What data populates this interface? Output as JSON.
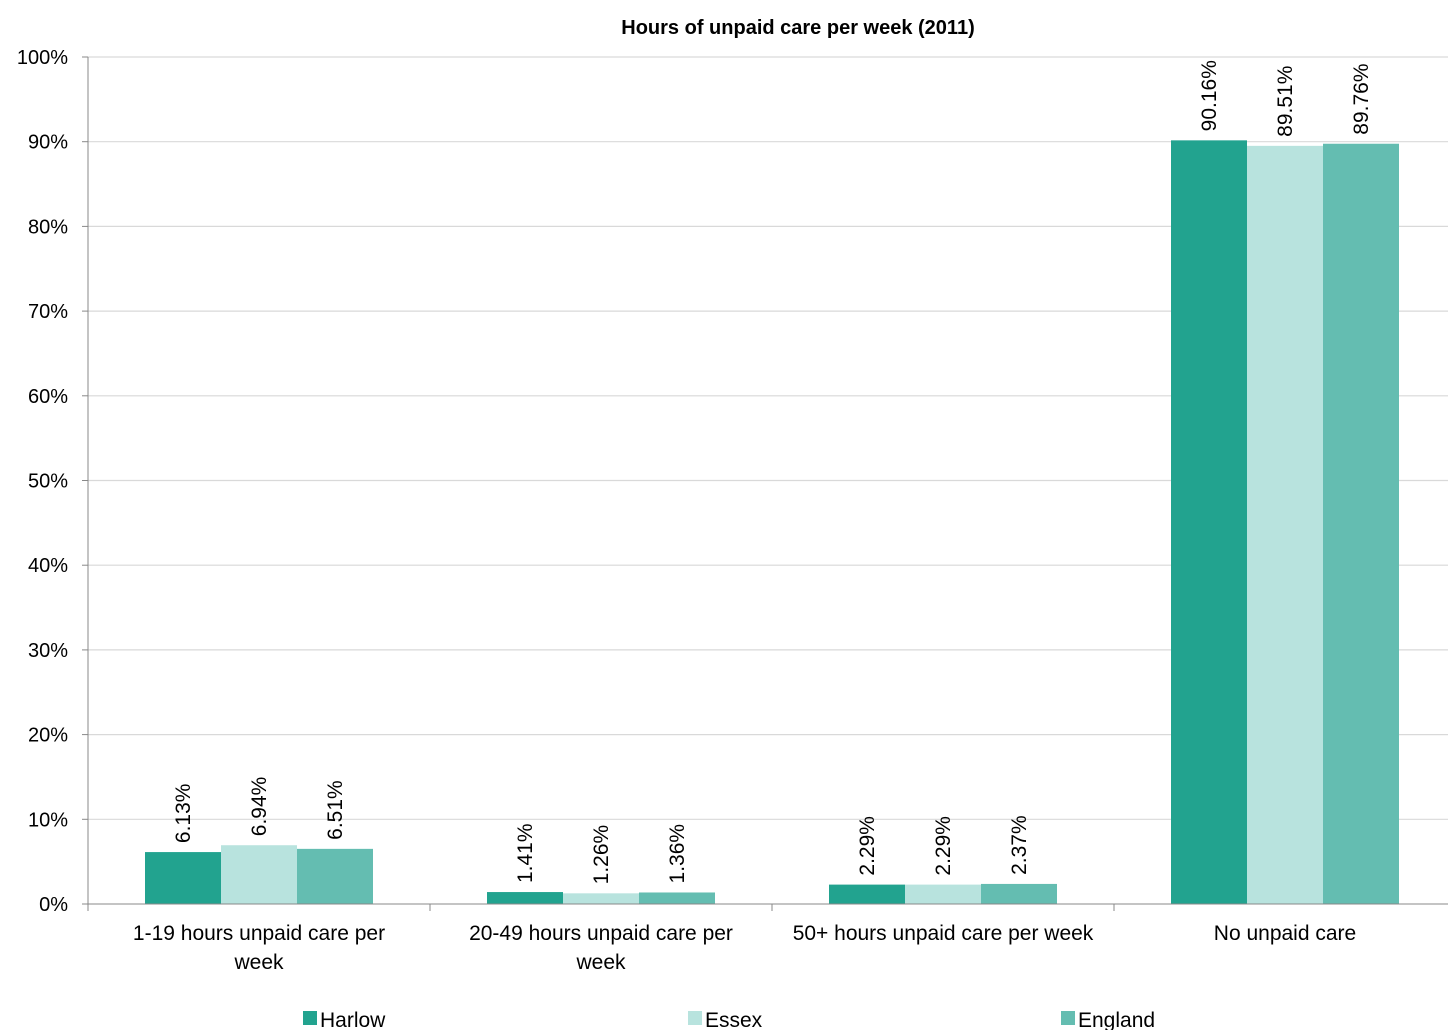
{
  "chart_data": {
    "type": "bar",
    "title": "Hours of unpaid care per week (2011)",
    "categories": [
      [
        "1-19 hours unpaid care per",
        "week"
      ],
      [
        "20-49 hours unpaid care per",
        "week"
      ],
      [
        "50+ hours unpaid care per week"
      ],
      [
        "No unpaid care"
      ]
    ],
    "series": [
      {
        "name": "Harlow",
        "values": [
          6.13,
          1.41,
          2.29,
          90.16
        ],
        "labels": [
          "6.13%",
          "1.41%",
          "2.29%",
          "90.16%"
        ],
        "color": "#22a38f"
      },
      {
        "name": "Essex",
        "values": [
          6.94,
          1.26,
          2.29,
          89.51
        ],
        "labels": [
          "6.94%",
          "1.26%",
          "2.29%",
          "89.51%"
        ],
        "color": "#b8e3de"
      },
      {
        "name": "England",
        "values": [
          6.51,
          1.36,
          2.37,
          89.76
        ],
        "labels": [
          "6.51%",
          "1.36%",
          "2.37%",
          "89.76%"
        ],
        "color": "#64bdb1"
      }
    ],
    "ylim": [
      0,
      100
    ],
    "yticks": [
      "0%",
      "10%",
      "20%",
      "30%",
      "40%",
      "50%",
      "60%",
      "70%",
      "80%",
      "90%",
      "100%"
    ],
    "grid": true,
    "legend_position": "bottom"
  }
}
